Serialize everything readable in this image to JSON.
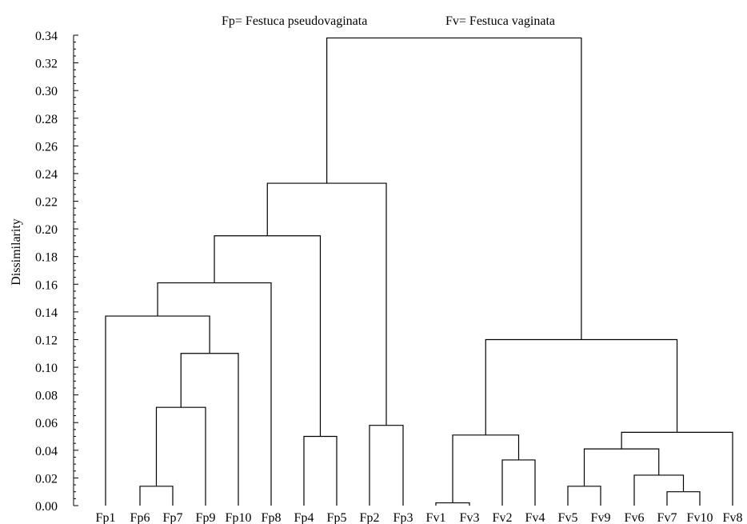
{
  "chart_data": {
    "type": "dendrogram",
    "title": "",
    "legend_text": [
      "Fp= Festuca pseudovaginata",
      "Fv= Festuca vaginata"
    ],
    "ylabel": "Dissimilarity",
    "xlabel": "",
    "ylim": [
      0,
      0.34
    ],
    "yticks": [
      "0.00",
      "0.02",
      "0.04",
      "0.06",
      "0.08",
      "0.10",
      "0.12",
      "0.14",
      "0.16",
      "0.18",
      "0.20",
      "0.22",
      "0.24",
      "0.26",
      "0.28",
      "0.30",
      "0.32",
      "0.34"
    ],
    "leaves": [
      "Fp1",
      "Fp6",
      "Fp7",
      "Fp9",
      "Fp10",
      "Fp8",
      "Fp4",
      "Fp5",
      "Fp2",
      "Fp3",
      "Fv1",
      "Fv3",
      "Fv2",
      "Fv4",
      "Fv5",
      "Fv9",
      "Fv6",
      "Fv7",
      "Fv10",
      "Fv8"
    ],
    "merges": [
      {
        "id": "m1",
        "left": "Fp6",
        "right": "Fp7",
        "height": 0.014
      },
      {
        "id": "m2",
        "left": "m1",
        "right": "Fp9",
        "height": 0.071
      },
      {
        "id": "m3",
        "left": "m2",
        "right": "Fp10",
        "height": 0.11
      },
      {
        "id": "m4",
        "left": "Fp1",
        "right": "m3",
        "height": 0.137
      },
      {
        "id": "m5",
        "left": "m4",
        "right": "Fp8",
        "height": 0.161
      },
      {
        "id": "m6",
        "left": "Fp4",
        "right": "Fp5",
        "height": 0.05
      },
      {
        "id": "m7",
        "left": "m5",
        "right": "m6",
        "height": 0.195
      },
      {
        "id": "m8",
        "left": "Fp2",
        "right": "Fp3",
        "height": 0.058
      },
      {
        "id": "m9",
        "left": "m7",
        "right": "m8",
        "height": 0.233
      },
      {
        "id": "m10",
        "left": "Fv1",
        "right": "Fv3",
        "height": 0.002
      },
      {
        "id": "m11",
        "left": "Fv2",
        "right": "Fv4",
        "height": 0.033
      },
      {
        "id": "m12",
        "left": "m10",
        "right": "m11",
        "height": 0.051
      },
      {
        "id": "m13",
        "left": "Fv5",
        "right": "Fv9",
        "height": 0.014
      },
      {
        "id": "m14",
        "left": "Fv7",
        "right": "Fv10",
        "height": 0.01
      },
      {
        "id": "m15",
        "left": "Fv6",
        "right": "m14",
        "height": 0.022
      },
      {
        "id": "m16",
        "left": "m13",
        "right": "m15",
        "height": 0.041
      },
      {
        "id": "m17",
        "left": "m16",
        "right": "Fv8",
        "height": 0.053
      },
      {
        "id": "m18",
        "left": "m12",
        "right": "m17",
        "height": 0.12
      },
      {
        "id": "m19",
        "left": "m9",
        "right": "m18",
        "height": 0.338
      }
    ]
  }
}
